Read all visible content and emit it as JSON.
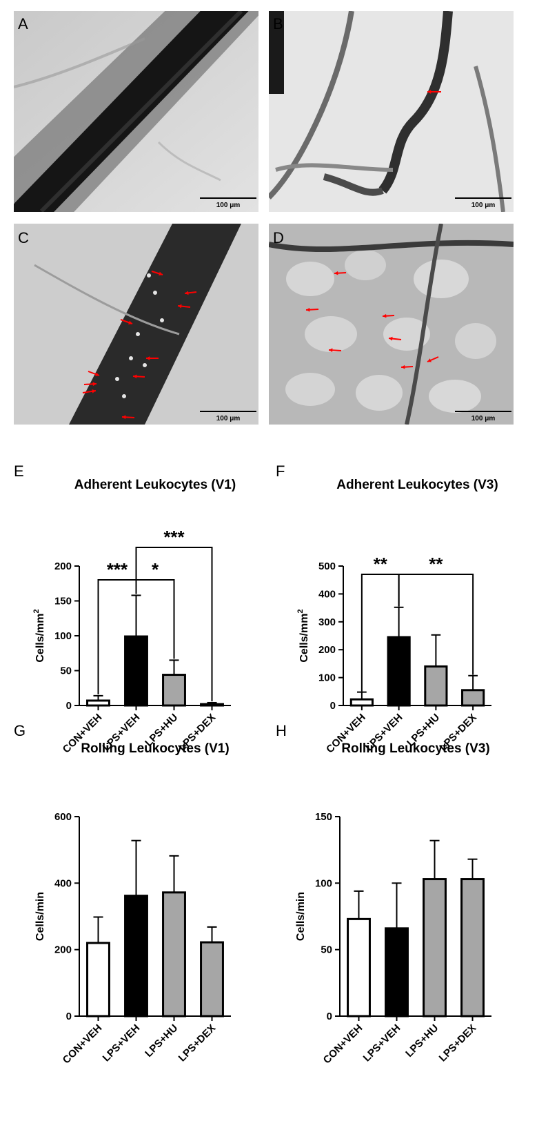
{
  "micrographs": [
    {
      "letter": "A",
      "scale_label": "100 μm",
      "marker_color": "#ff0000"
    },
    {
      "letter": "B",
      "scale_label": "100 μm",
      "marker_color": "#ff0000"
    },
    {
      "letter": "C",
      "scale_label": "100 μm",
      "marker_color": "#ff0000"
    },
    {
      "letter": "D",
      "scale_label": "100 μm",
      "marker_color": "#ff0000"
    }
  ],
  "chart_data": [
    {
      "panel": "E",
      "type": "bar",
      "title": "Adherent Leukocytes (V1)",
      "ylabel_main": "Cells/mm",
      "ylabel_sup": "2",
      "categories": [
        "CON+VEH",
        "LPS+VEH",
        "LPS+HU",
        "LPS+DEX"
      ],
      "values": [
        7,
        99,
        44,
        2
      ],
      "errors": [
        7,
        59,
        21,
        2
      ],
      "bar_colors": [
        "#ffffff",
        "#000000",
        "#a6a6a6",
        "#a6a6a6"
      ],
      "ylim": [
        0,
        200
      ],
      "yticks": [
        "0",
        "50",
        "100",
        "150",
        "200"
      ],
      "significance": [
        {
          "from": 0,
          "to": 1,
          "label": "***"
        },
        {
          "from": 1,
          "to": 2,
          "label": "*"
        },
        {
          "from": 1,
          "to": 3,
          "label": "***"
        }
      ]
    },
    {
      "panel": "F",
      "type": "bar",
      "title": "Adherent Leukocytes (V3)",
      "ylabel_main": "Cells/mm",
      "ylabel_sup": "2",
      "categories": [
        "CON+VEH",
        "LPS+VEH",
        "LPS+HU",
        "LPS+DEX"
      ],
      "values": [
        22,
        245,
        140,
        55
      ],
      "errors": [
        26,
        107,
        113,
        52
      ],
      "bar_colors": [
        "#ffffff",
        "#000000",
        "#a6a6a6",
        "#a6a6a6"
      ],
      "ylim": [
        0,
        500
      ],
      "yticks": [
        "0",
        "100",
        "200",
        "300",
        "400",
        "500"
      ],
      "significance": [
        {
          "from": 0,
          "to": 1,
          "label": "**"
        },
        {
          "from": 1,
          "to": 3,
          "label": "**"
        }
      ]
    },
    {
      "panel": "G",
      "type": "bar",
      "title": "Rolling Leukocytes (V1)",
      "ylabel_main": "Cells/min",
      "ylabel_sup": "",
      "categories": [
        "CON+VEH",
        "LPS+VEH",
        "LPS+HU",
        "LPS+DEX"
      ],
      "values": [
        220,
        362,
        372,
        222
      ],
      "errors": [
        78,
        166,
        110,
        46
      ],
      "bar_colors": [
        "#ffffff",
        "#000000",
        "#a6a6a6",
        "#a6a6a6"
      ],
      "ylim": [
        0,
        600
      ],
      "yticks": [
        "0",
        "200",
        "400",
        "600"
      ],
      "significance": []
    },
    {
      "panel": "H",
      "type": "bar",
      "title": "Rolling Leukocytes (V3)",
      "ylabel_main": "Cells/min",
      "ylabel_sup": "",
      "categories": [
        "CON+VEH",
        "LPS+VEH",
        "LPS+HU",
        "LPS+DEX"
      ],
      "values": [
        73,
        66,
        103,
        103
      ],
      "errors": [
        21,
        34,
        29,
        15
      ],
      "bar_colors": [
        "#ffffff",
        "#000000",
        "#a6a6a6",
        "#a6a6a6"
      ],
      "ylim": [
        0,
        150
      ],
      "yticks": [
        "0",
        "50",
        "100",
        "150"
      ],
      "significance": []
    }
  ]
}
